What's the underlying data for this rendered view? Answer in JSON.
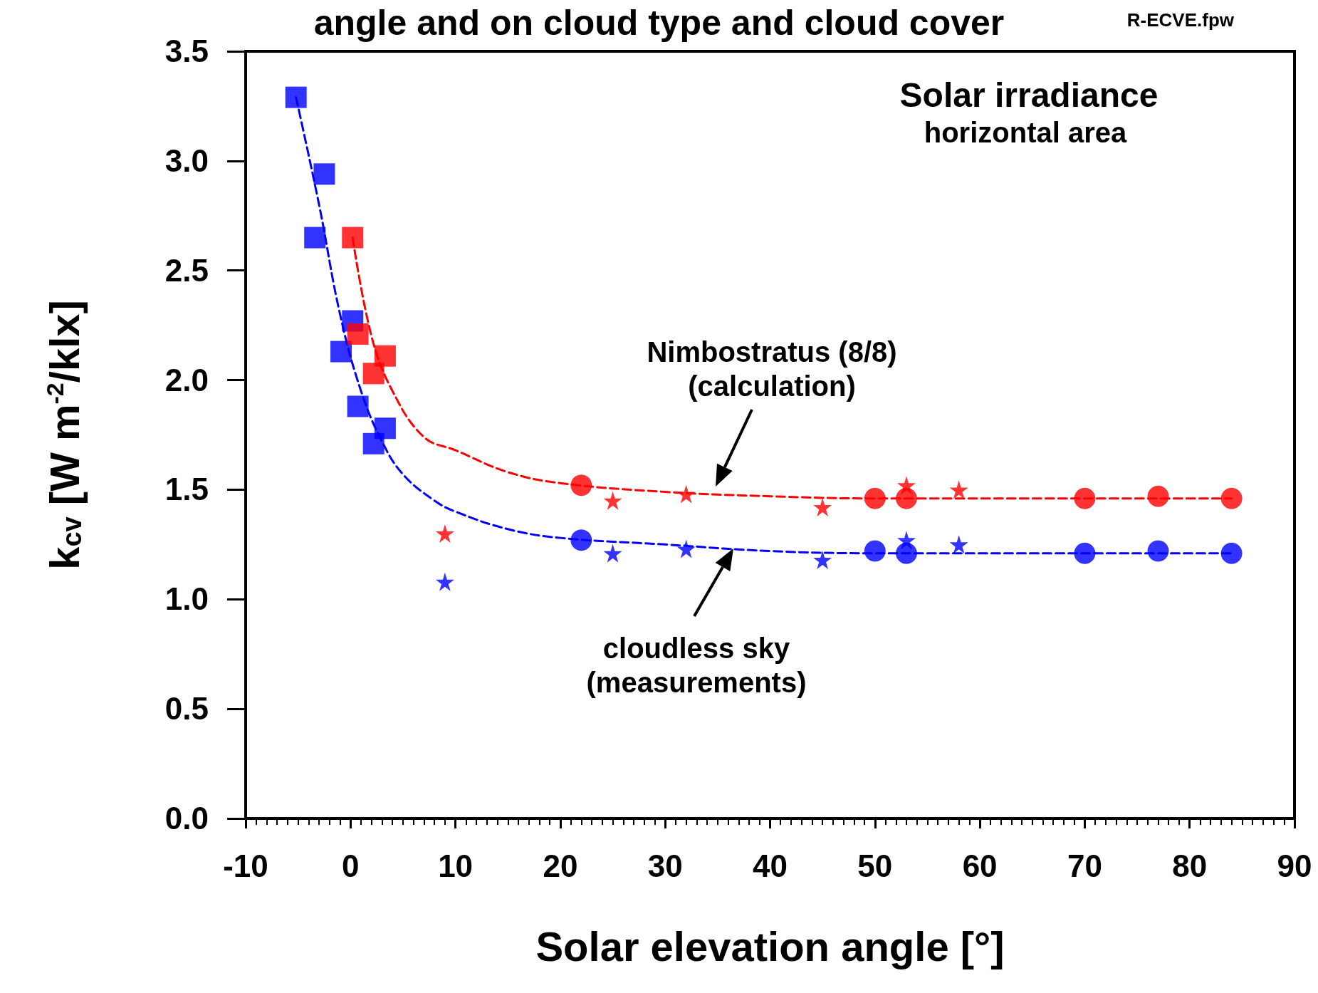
{
  "chart_data": {
    "type": "scatter",
    "title": "angle and on cloud type and cloud cover",
    "xlabel": "Solar elevation angle [°]",
    "ylabel": "k$_{cv}$ [W m$^{-2}$/klx]",
    "xlim": [
      -10,
      90
    ],
    "xticks": [
      -10,
      0,
      10,
      20,
      30,
      40,
      50,
      60,
      70,
      80,
      90
    ],
    "ylim": [
      0,
      3.5
    ],
    "yticks": [
      {
        "value": 0,
        "label": "0.0"
      },
      {
        "value": 0.5,
        "label": "0.5"
      },
      {
        "value": 1,
        "label": "1.0"
      },
      {
        "value": 1.5,
        "label": "1.5"
      },
      {
        "value": 2,
        "label": "2.0"
      },
      {
        "value": 2.5,
        "label": "2.5"
      },
      {
        "value": 3,
        "label": "3.0"
      },
      {
        "value": 3.5,
        "label": "3.5"
      }
    ],
    "grid": false,
    "series": [
      {
        "type": "line",
        "color": "#ff0000",
        "marker": "none",
        "line_style": "dashed",
        "x": [
          0.2,
          2,
          4,
          7,
          10,
          15,
          20,
          30,
          40,
          50,
          84
        ],
        "values": [
          2.65,
          2.2,
          1.95,
          1.74,
          1.68,
          1.58,
          1.53,
          1.49,
          1.47,
          1.46,
          1.46
        ]
      },
      {
        "type": "line",
        "color": "#0000ff",
        "marker": "none",
        "line_style": "dashed",
        "x": [
          -5.2,
          -3,
          -1,
          1,
          3,
          5,
          8,
          10,
          15,
          20,
          30,
          40,
          50,
          84
        ],
        "values": [
          3.29,
          2.8,
          2.3,
          1.95,
          1.72,
          1.57,
          1.45,
          1.4,
          1.32,
          1.28,
          1.25,
          1.22,
          1.21,
          1.21
        ]
      },
      {
        "color": "#0000ff",
        "marker": "square",
        "x": [
          -5.2,
          -2.5,
          -3.4,
          0.2,
          -0.9,
          0.7,
          3.3,
          2.2
        ],
        "values": [
          3.29,
          2.94,
          2.65,
          2.27,
          2.13,
          1.88,
          1.78,
          1.71
        ]
      },
      {
        "color": "#ff0000",
        "marker": "square",
        "x": [
          0.2,
          0.7,
          3.3,
          2.2
        ],
        "values": [
          2.65,
          2.21,
          2.11,
          2.03
        ]
      },
      {
        "color": "#ff0000",
        "marker": "circle",
        "x": [
          22,
          50,
          53,
          70,
          77,
          84
        ],
        "values": [
          1.52,
          1.46,
          1.46,
          1.46,
          1.47,
          1.46
        ]
      },
      {
        "color": "#0000ff",
        "marker": "circle",
        "x": [
          22,
          50,
          53,
          70,
          77,
          84
        ],
        "values": [
          1.27,
          1.22,
          1.21,
          1.21,
          1.22,
          1.21
        ]
      },
      {
        "color": "#ff0000",
        "marker": "star",
        "x": [
          9,
          25,
          32,
          45,
          53,
          58
        ],
        "values": [
          1.3,
          1.45,
          1.48,
          1.42,
          1.52,
          1.5
        ]
      },
      {
        "color": "#0000ff",
        "marker": "star",
        "x": [
          9,
          25,
          32,
          45,
          53,
          58
        ],
        "values": [
          1.08,
          1.21,
          1.23,
          1.18,
          1.27,
          1.25
        ]
      }
    ],
    "annotations": [
      "R-ECVE.fpw",
      "Solar irradiance",
      "horizontal area",
      "Nimbostratus (8/8)\n(calculation)",
      "cloudless sky\n(measurements)"
    ]
  }
}
